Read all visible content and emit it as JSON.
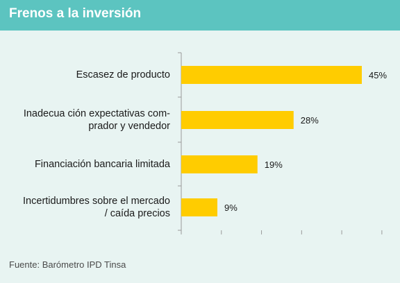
{
  "header": {
    "title": "Frenos a la inversión"
  },
  "footer": {
    "source": "Fuente: Barómetro IPD Tinsa"
  },
  "colors": {
    "header": "#5cc4c0",
    "bar": "#ffcc00",
    "background": "#e8f4f2"
  },
  "chart_data": {
    "type": "bar",
    "orientation": "horizontal",
    "title": "Frenos a la inversión",
    "categories": [
      [
        "Escasez de producto"
      ],
      [
        "Inadecua ción expectativas com-",
        "prador y vendedor"
      ],
      [
        "Financiación bancaria limitada"
      ],
      [
        "Incertidumbres sobre el mercado",
        "/ caída precios"
      ]
    ],
    "values": [
      45,
      28,
      19,
      9
    ],
    "value_labels": [
      "45%",
      "28%",
      "19%",
      "9%"
    ],
    "xlim": [
      0,
      50
    ],
    "grid": false,
    "legend": "none"
  }
}
